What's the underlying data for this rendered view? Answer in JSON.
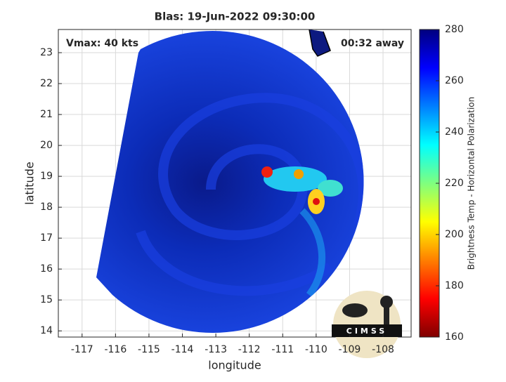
{
  "chart_data": {
    "type": "image",
    "title": "Blas: 19-Jun-2022 09:30:00",
    "annotations": [
      "Vmax: 40 kts",
      "00:32 away",
      "CIMSS"
    ],
    "xlabel": "longitude",
    "ylabel": "latitude",
    "xlim": [
      -117.71,
      -107.16
    ],
    "xticks": [
      -117,
      -116,
      -115,
      -114,
      -113,
      -112,
      -111,
      -110,
      -109,
      -108
    ],
    "ylim": [
      13.8,
      23.75
    ],
    "yticks": [
      14,
      15,
      16,
      17,
      18,
      19,
      20,
      21,
      22,
      23
    ],
    "grid": true,
    "colorbar": {
      "label": "Brightness Temp - Horizontal Polarization",
      "lim": [
        160,
        280
      ],
      "ticks": [
        160,
        180,
        200,
        220,
        240,
        260,
        280
      ],
      "colormap": "jet_r"
    }
  }
}
